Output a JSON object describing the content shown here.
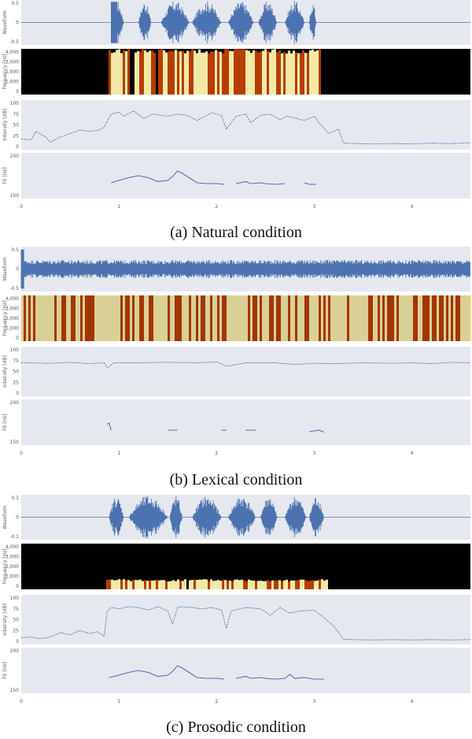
{
  "captions": {
    "a": "(a) Natural condition",
    "b": "(b) Lexical condition",
    "c": "(c) Prosodic condition"
  },
  "colors": {
    "panel_bg": "#e6e8f0",
    "trace": "#4c72b0",
    "spec_dark": "#000000",
    "spec_mid": "#c04000",
    "spec_bright": "#fff5b0"
  },
  "chart_data": [
    {
      "type": "line",
      "title": "",
      "condition": "natural",
      "x_ticks": [
        "0",
        "1",
        "2",
        "3",
        "4"
      ],
      "x_range": [
        0,
        4.6
      ],
      "panels": [
        {
          "id": "waveform",
          "ylabel": "Waveform",
          "yticks": [
            "0.5",
            "0",
            "-0.5"
          ],
          "ylim": [
            -0.8,
            0.8
          ]
        },
        {
          "id": "spectrogram",
          "ylabel": "Frequency [Hz]",
          "yticks": [
            "4,000",
            "3,000",
            "2,000",
            "1,000",
            "0"
          ],
          "ylim": [
            0,
            4000
          ]
        },
        {
          "id": "intensity",
          "ylabel": "Intensity [dB]",
          "yticks": [
            "100",
            "75",
            "50",
            "25",
            "0"
          ],
          "ylim": [
            0,
            100
          ]
        },
        {
          "id": "f0",
          "ylabel": "F0 [Hz]",
          "yticks": [
            "200",
            "150"
          ],
          "ylim": [
            120,
            220
          ]
        }
      ],
      "speech_segments": [
        [
          0.92,
          1.05
        ],
        [
          1.2,
          1.33
        ],
        [
          1.43,
          1.72
        ],
        [
          1.75,
          2.05
        ],
        [
          2.12,
          2.38
        ],
        [
          2.43,
          2.62
        ],
        [
          2.7,
          2.9
        ],
        [
          2.95,
          3.02
        ]
      ],
      "intensity": {
        "x": [
          0,
          0.1,
          0.15,
          0.25,
          0.3,
          0.4,
          0.5,
          0.6,
          0.7,
          0.8,
          0.85,
          0.92,
          1.0,
          1.05,
          1.15,
          1.25,
          1.35,
          1.5,
          1.6,
          1.7,
          1.8,
          1.95,
          2.05,
          2.1,
          2.2,
          2.3,
          2.35,
          2.45,
          2.55,
          2.65,
          2.72,
          2.82,
          2.9,
          3.0,
          3.05,
          3.15,
          3.25,
          3.3,
          3.45,
          3.6,
          3.8,
          4.0,
          4.2,
          4.4,
          4.6
        ],
        "y": [
          18,
          15,
          35,
          22,
          10,
          22,
          30,
          38,
          35,
          38,
          45,
          75,
          80,
          70,
          82,
          65,
          75,
          70,
          75,
          72,
          60,
          78,
          72,
          40,
          70,
          75,
          55,
          72,
          75,
          62,
          70,
          65,
          60,
          70,
          55,
          30,
          40,
          8,
          7,
          6,
          7,
          6,
          8,
          7,
          9
        ]
      },
      "f0": {
        "x": [
          0.92,
          1.0,
          1.1,
          1.2,
          1.3,
          1.4,
          1.5,
          1.55,
          1.6,
          1.65,
          1.75,
          1.8,
          1.9,
          2.0,
          2.08,
          2.2,
          2.3,
          2.35,
          2.45,
          2.5,
          2.6,
          2.7,
          2.9,
          2.95,
          3.02
        ],
        "y": [
          152,
          158,
          165,
          170,
          165,
          155,
          158,
          168,
          182,
          176,
          160,
          152,
          150,
          150,
          148,
          150,
          155,
          150,
          152,
          150,
          148,
          150,
          152,
          148,
          148
        ]
      }
    },
    {
      "type": "line",
      "title": "",
      "condition": "lexical",
      "x_ticks": [
        "0",
        "1",
        "2",
        "3",
        "4"
      ],
      "x_range": [
        0,
        4.6
      ],
      "panels": [
        {
          "id": "waveform",
          "ylabel": "Waveform",
          "yticks": [
            "0.5",
            "0",
            "-0.5"
          ],
          "ylim": [
            -0.8,
            0.8
          ]
        },
        {
          "id": "spectrogram",
          "ylabel": "Frequency [Hz]",
          "yticks": [
            "4,000",
            "3,000",
            "2,000",
            "1,000",
            "0"
          ],
          "ylim": [
            0,
            4000
          ]
        },
        {
          "id": "intensity",
          "ylabel": "Intensity [dB]",
          "yticks": [
            "100",
            "75",
            "50",
            "25",
            "0"
          ],
          "ylim": [
            0,
            100
          ]
        },
        {
          "id": "f0",
          "ylabel": "F0 [Hz]",
          "yticks": [
            "200",
            "150"
          ],
          "ylim": [
            120,
            220
          ]
        }
      ],
      "intensity": {
        "x": [
          0,
          0.3,
          0.5,
          0.7,
          0.85,
          0.88,
          0.95,
          1.2,
          1.5,
          1.8,
          2.0,
          2.1,
          2.3,
          2.6,
          2.8,
          3.0,
          3.2,
          3.5,
          3.8,
          4.0,
          4.2,
          4.4,
          4.6
        ],
        "y": [
          70,
          69,
          71,
          68,
          70,
          58,
          70,
          70,
          71,
          70,
          72,
          62,
          70,
          70,
          66,
          69,
          68,
          70,
          69,
          70,
          68,
          71,
          70
        ],
        "segments": [
          [
            0.0,
            0.12
          ],
          [
            0.2,
            0.8
          ],
          [
            0.9,
            1.3
          ],
          [
            1.35,
            2.05
          ],
          [
            2.12,
            2.6
          ],
          [
            2.65,
            3.1
          ],
          [
            3.2,
            4.6
          ]
        ]
      },
      "f0": {
        "x": [
          0.88,
          0.9,
          0.92,
          1.2,
          1.5,
          1.6,
          1.75,
          2.05,
          2.1,
          2.3,
          2.4,
          2.6,
          2.8,
          2.95,
          3.05,
          3.1
        ],
        "y": [
          165,
          168,
          150,
          150,
          150,
          150,
          150,
          150,
          150,
          150,
          150,
          150,
          148,
          146,
          150,
          145
        ],
        "segments": [
          [
            0.88,
            0.9
          ],
          [
            0.92,
            1.5
          ],
          [
            1.75,
            2.05
          ],
          [
            2.3,
            2.6
          ],
          [
            2.8,
            3.1
          ]
        ]
      }
    },
    {
      "type": "line",
      "title": "",
      "condition": "prosodic",
      "x_ticks": [
        "0",
        "1",
        "2",
        "3",
        "4"
      ],
      "x_range": [
        0,
        4.6
      ],
      "panels": [
        {
          "id": "waveform",
          "ylabel": "Waveform",
          "yticks": [
            "0.1",
            "0",
            "-0.1"
          ],
          "ylim": [
            -0.18,
            0.18
          ]
        },
        {
          "id": "spectrogram",
          "ylabel": "Frequency [Hz]",
          "yticks": [
            "4,000",
            "3,000",
            "2,000",
            "1,000",
            "0"
          ],
          "ylim": [
            0,
            4000
          ]
        },
        {
          "id": "intensity",
          "ylabel": "Intensity [dB]",
          "yticks": [
            "100",
            "75",
            "50",
            "25",
            "0"
          ],
          "ylim": [
            0,
            100
          ]
        },
        {
          "id": "f0",
          "ylabel": "F0 [Hz]",
          "yticks": [
            "200",
            "150"
          ],
          "ylim": [
            120,
            220
          ]
        }
      ],
      "speech_segments": [
        [
          0.9,
          1.05
        ],
        [
          1.1,
          1.5
        ],
        [
          1.52,
          1.65
        ],
        [
          1.75,
          2.05
        ],
        [
          2.12,
          2.4
        ],
        [
          2.45,
          2.62
        ],
        [
          2.7,
          2.92
        ],
        [
          2.95,
          3.1
        ]
      ],
      "intensity": {
        "x": [
          0,
          0.1,
          0.2,
          0.3,
          0.4,
          0.5,
          0.6,
          0.7,
          0.78,
          0.85,
          0.88,
          0.92,
          1.0,
          1.1,
          1.2,
          1.3,
          1.4,
          1.5,
          1.55,
          1.6,
          1.65,
          1.75,
          1.85,
          1.95,
          2.05,
          2.1,
          2.15,
          2.3,
          2.45,
          2.55,
          2.65,
          2.75,
          2.85,
          3.0,
          3.1,
          3.2,
          3.3,
          3.4,
          3.6,
          3.8,
          4.0,
          4.2,
          4.4,
          4.6
        ],
        "y": [
          8,
          10,
          6,
          10,
          20,
          15,
          25,
          18,
          22,
          12,
          70,
          78,
          75,
          80,
          78,
          72,
          80,
          70,
          40,
          78,
          80,
          78,
          75,
          78,
          72,
          30,
          70,
          78,
          75,
          60,
          78,
          65,
          70,
          72,
          55,
          35,
          5,
          4,
          3,
          4,
          3,
          4,
          3,
          4
        ]
      },
      "f0": {
        "x": [
          0.9,
          1.0,
          1.1,
          1.2,
          1.3,
          1.4,
          1.5,
          1.55,
          1.6,
          1.65,
          1.75,
          1.8,
          1.9,
          2.0,
          2.08,
          2.2,
          2.3,
          2.35,
          2.45,
          2.5,
          2.6,
          2.7,
          2.75,
          2.8,
          2.9,
          3.0,
          3.1
        ],
        "y": [
          152,
          158,
          165,
          170,
          165,
          155,
          158,
          168,
          182,
          176,
          160,
          152,
          150,
          150,
          148,
          150,
          155,
          150,
          152,
          150,
          148,
          150,
          160,
          150,
          152,
          148,
          148
        ]
      }
    }
  ]
}
